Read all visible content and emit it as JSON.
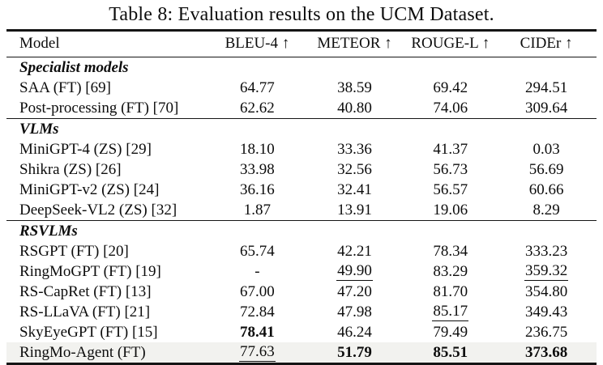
{
  "title": "Table 8: Evaluation results on the UCM Dataset.",
  "colors": {
    "highlight_row": "#f2f2ef",
    "rule": "#151515",
    "text": "#0d0d0d"
  },
  "table": {
    "columns": [
      "Model",
      "BLEU-4 ↑",
      "METEOR ↑",
      "ROUGE-L ↑",
      "CIDEr ↑"
    ],
    "sections": [
      {
        "label": "Specialist models",
        "rows": [
          {
            "model": "SAA (FT) [69]",
            "highlight": false,
            "values": [
              {
                "text": "64.77",
                "style": "plain"
              },
              {
                "text": "38.59",
                "style": "plain"
              },
              {
                "text": "69.42",
                "style": "plain"
              },
              {
                "text": "294.51",
                "style": "plain"
              }
            ]
          },
          {
            "model": "Post-processing (FT) [70]",
            "highlight": false,
            "values": [
              {
                "text": "62.62",
                "style": "plain"
              },
              {
                "text": "40.80",
                "style": "plain"
              },
              {
                "text": "74.06",
                "style": "plain"
              },
              {
                "text": "309.64",
                "style": "plain"
              }
            ]
          }
        ]
      },
      {
        "label": "VLMs",
        "rows": [
          {
            "model": "MiniGPT-4 (ZS) [29]",
            "highlight": false,
            "values": [
              {
                "text": "18.10",
                "style": "plain"
              },
              {
                "text": "33.36",
                "style": "plain"
              },
              {
                "text": "41.37",
                "style": "plain"
              },
              {
                "text": "0.03",
                "style": "plain"
              }
            ]
          },
          {
            "model": "Shikra (ZS) [26]",
            "highlight": false,
            "values": [
              {
                "text": "33.98",
                "style": "plain"
              },
              {
                "text": "32.56",
                "style": "plain"
              },
              {
                "text": "56.73",
                "style": "plain"
              },
              {
                "text": "56.69",
                "style": "plain"
              }
            ]
          },
          {
            "model": "MiniGPT-v2 (ZS) [24]",
            "highlight": false,
            "values": [
              {
                "text": "36.16",
                "style": "plain"
              },
              {
                "text": "32.41",
                "style": "plain"
              },
              {
                "text": "56.57",
                "style": "plain"
              },
              {
                "text": "60.66",
                "style": "plain"
              }
            ]
          },
          {
            "model": "DeepSeek-VL2 (ZS) [32]",
            "highlight": false,
            "values": [
              {
                "text": "1.87",
                "style": "plain"
              },
              {
                "text": "13.91",
                "style": "plain"
              },
              {
                "text": "19.06",
                "style": "plain"
              },
              {
                "text": "8.29",
                "style": "plain"
              }
            ]
          }
        ]
      },
      {
        "label": "RSVLMs",
        "rows": [
          {
            "model": "RSGPT (FT) [20]",
            "highlight": false,
            "values": [
              {
                "text": "65.74",
                "style": "plain"
              },
              {
                "text": "42.21",
                "style": "plain"
              },
              {
                "text": "78.34",
                "style": "plain"
              },
              {
                "text": "333.23",
                "style": "plain"
              }
            ]
          },
          {
            "model": "RingMoGPT (FT) [19]",
            "highlight": false,
            "values": [
              {
                "text": "-",
                "style": "plain"
              },
              {
                "text": "49.90",
                "style": "underline"
              },
              {
                "text": "83.29",
                "style": "plain"
              },
              {
                "text": "359.32",
                "style": "underline"
              }
            ]
          },
          {
            "model": "RS-CapRet (FT) [13]",
            "highlight": false,
            "values": [
              {
                "text": "67.00",
                "style": "plain"
              },
              {
                "text": "47.20",
                "style": "plain"
              },
              {
                "text": "81.70",
                "style": "plain"
              },
              {
                "text": "354.80",
                "style": "plain"
              }
            ]
          },
          {
            "model": "RS-LLaVA (FT) [21]",
            "highlight": false,
            "values": [
              {
                "text": "72.84",
                "style": "plain"
              },
              {
                "text": "47.98",
                "style": "plain"
              },
              {
                "text": "85.17",
                "style": "underline"
              },
              {
                "text": "349.43",
                "style": "plain"
              }
            ]
          },
          {
            "model": "SkyEyeGPT (FT) [15]",
            "highlight": false,
            "values": [
              {
                "text": "78.41",
                "style": "bold"
              },
              {
                "text": "46.24",
                "style": "plain"
              },
              {
                "text": "79.49",
                "style": "plain"
              },
              {
                "text": "236.75",
                "style": "plain"
              }
            ]
          },
          {
            "model": "RingMo-Agent (FT)",
            "highlight": true,
            "values": [
              {
                "text": "77.63",
                "style": "underline"
              },
              {
                "text": "51.79",
                "style": "bold"
              },
              {
                "text": "85.51",
                "style": "bold"
              },
              {
                "text": "373.68",
                "style": "bold"
              }
            ]
          }
        ]
      }
    ]
  }
}
